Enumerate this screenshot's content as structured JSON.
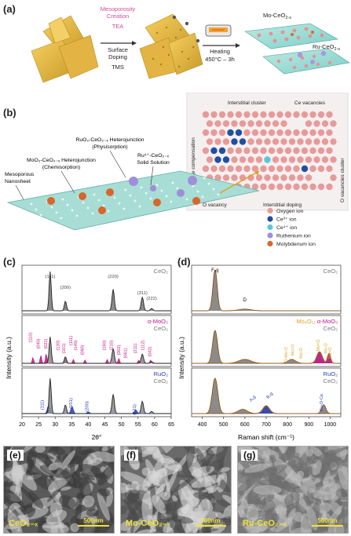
{
  "panel_a": {
    "label": "(a)",
    "mesoporosity": "Mesoporosity",
    "creation": "Creation",
    "tea": "TEA",
    "surface": "Surface",
    "doping": "Doping",
    "tms": "TMS",
    "heating": "Heating",
    "heating_cond": "450°C – 3h",
    "mo_label": "Mo-CeO",
    "mo_sub": "2-x",
    "ru_label": "Ru-CeO",
    "ru_sub": "2-x"
  },
  "panel_b": {
    "label": "(b)",
    "redox": "Redox charge compensation",
    "interstitial_cluster": "Interstitial cluster",
    "ce_vacancies": "Ce vacancies",
    "o_vac_cluster": "O vacancies cluster",
    "o_vacancy": "O vacancy",
    "interstitial_doping": "Interstitial doping",
    "ruo2_het": "RuO₂-CeO₂₋ₓ Heterojunction",
    "physisorption": "(Physisorption)",
    "moo3_het": "MoO₃-CeO₂₋ₓ Heterojunction",
    "chemisorption": "(Chemisorption)",
    "ru_solid": "Ru⁴⁺-CeO₂₋ₓ",
    "solid_solution": "Solid Solution",
    "mesoporous": "Mesoporous",
    "nanosheet": "Nanosheet",
    "legend": [
      {
        "label": "Oxygen ion",
        "color": "#e89a9a"
      },
      {
        "label": "Ce³⁺ ion",
        "color": "#1f4fa0"
      },
      {
        "label": "Ce⁴⁺ ion",
        "color": "#58c8d8"
      },
      {
        "label": "Ruthenium ion",
        "color": "#9f8ed8"
      },
      {
        "label": "Molybdenum ion",
        "color": "#d8662a"
      }
    ]
  },
  "panel_c": {
    "label": "(c)",
    "xlabel": "2θ°",
    "ylabel": "Intensity (a.u.)",
    "xticks": [
      "20",
      "25",
      "30",
      "35",
      "40",
      "45",
      "50",
      "55",
      "60",
      "65"
    ],
    "sub1_legend": [
      "CeO₂"
    ],
    "sub2_legend": [
      "α-MoO₃",
      "CeO₂"
    ],
    "sub3_legend": [
      "RuO₂",
      "CeO₂"
    ],
    "ceo2_hkl": [
      "(111)",
      "(200)",
      "(220)",
      "(311)",
      "(222)"
    ],
    "moo3_hkl": [
      "(110)",
      "(040)",
      "(021)",
      "(130)",
      "(101)",
      "(111)",
      "(140)",
      "(060)",
      "(160)",
      "(210)",
      "(002)",
      "(061)",
      "(211)",
      "(112)",
      "(042)"
    ],
    "ruo2_hkl": [
      "(111)",
      "(101)",
      "(200)",
      "(121)"
    ],
    "colors": {
      "ceo2": "#555555",
      "moo3": "#c2188a",
      "ruo2": "#2a3fb0"
    }
  },
  "panel_d": {
    "label": "(d)",
    "xlabel": "Raman shift (cm⁻¹)",
    "ylabel": "Intensity (a.u.)",
    "xticks": [
      "400",
      "500",
      "600",
      "700",
      "800",
      "900",
      "1000"
    ],
    "sub1_legend": [
      "CeO₂"
    ],
    "sub1_peak": "F₂g",
    "sub1_d": "D",
    "sub2_legend_a": "Mo₄O₁₁",
    "sub2_legend_b": "α-MoO₃",
    "sub2_legend_c": "CeO₂",
    "sub2_peaks": [
      "O-Mo-O",
      "Mo=O",
      "Mo-O",
      "Mo=O",
      "Mo-O",
      "Mo=O"
    ],
    "sub3_legend": [
      "RuO₂",
      "CeO₂"
    ],
    "sub3_peaks": [
      "A₁g",
      "B₂g",
      "Ru-O-Ce"
    ],
    "colors": {
      "fit": "#e88a2a",
      "data": "#333333"
    }
  },
  "panel_e": {
    "label": "(e)",
    "sample": "CeO₂₋ₓ",
    "scale": "500nm"
  },
  "panel_f": {
    "label": "(f)",
    "sample": "Mo-CeO₂₋ₓ",
    "scale": "500nm"
  },
  "panel_g": {
    "label": "(g)",
    "sample": "Ru-CeO₂₋ₓ",
    "scale": "500nm"
  }
}
